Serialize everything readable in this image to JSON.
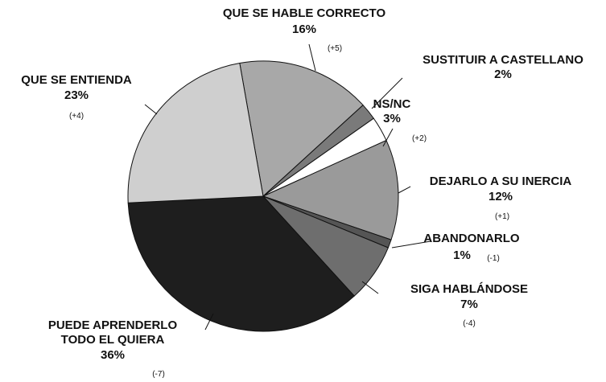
{
  "chart_data": {
    "type": "pie",
    "categories": [
      "QUE SE HABLE CORRECTO",
      "SUSTITUIR A CASTELLANO",
      "NS/NC",
      "DEJARLO A SU INERCIA",
      "ABANDONARLO",
      "SIGA HABLÁNDOSE",
      "PUEDE APRENDERLO TODO EL QUIERA",
      "QUE SE ENTIENDA"
    ],
    "values": [
      16,
      2,
      3,
      12,
      1,
      7,
      36,
      23
    ],
    "value_labels": [
      "16%",
      "2%",
      "3%",
      "12%",
      "1%",
      "7%",
      "36%",
      "23%"
    ],
    "changes": [
      "(+5)",
      null,
      "(+2)",
      "(+1)",
      "(-1)",
      "(-4)",
      "(-7)",
      "(+4)"
    ],
    "colors": [
      "#a8a8a8",
      "#7a7a7a",
      "#ffffff",
      "#9a9a9a",
      "#555555",
      "#6e6e6e",
      "#1e1e1e",
      "#cfcfcf"
    ]
  }
}
